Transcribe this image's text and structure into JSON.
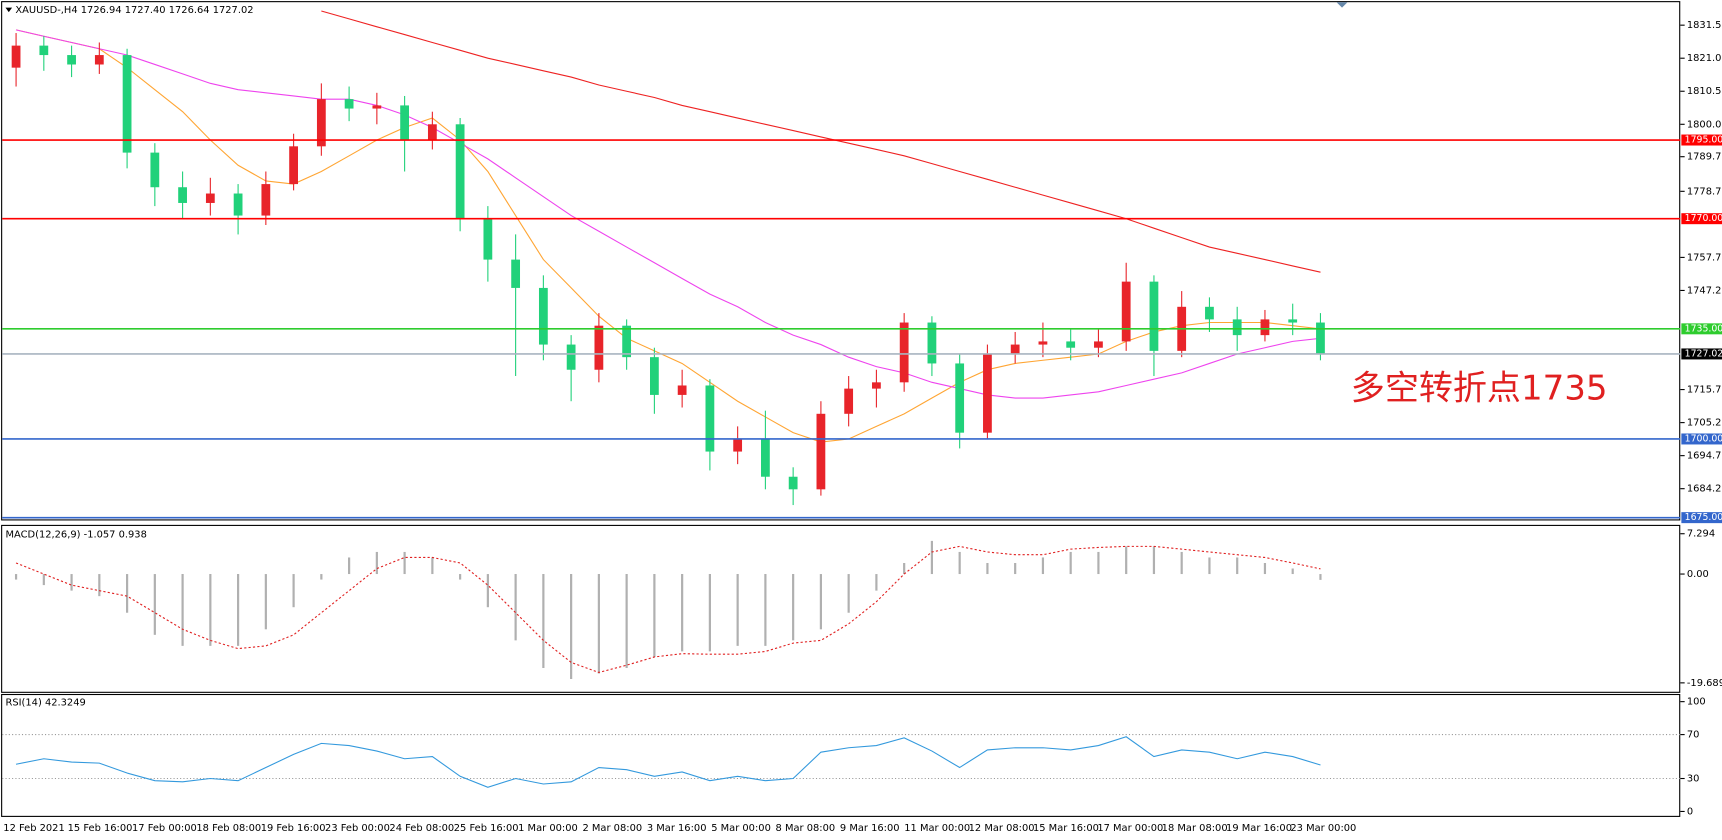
{
  "chart_data": [
    {
      "type": "candlestick",
      "title": "XAUUSD-,H4  1726.94 1727.40 1726.64 1727.02",
      "up_color": "#e8242a",
      "down_color": "#21d17a",
      "open": [
        1818,
        1825,
        1822,
        1819,
        1822,
        1791,
        1780,
        1775,
        1778,
        1771,
        1781,
        1793,
        1808,
        1805,
        1806,
        1795,
        1800,
        1770,
        1757,
        1748,
        1730,
        1722,
        1736,
        1726,
        1714,
        1717,
        1696,
        1700,
        1688,
        1684,
        1708,
        1716,
        1718,
        1737,
        1724,
        1702,
        1727,
        1730,
        1731,
        1729,
        1731,
        1750,
        1728,
        1742,
        1738,
        1733,
        1738,
        1737
      ],
      "high": [
        1829,
        1828,
        1825,
        1826,
        1824,
        1794,
        1785,
        1783,
        1781,
        1785,
        1797,
        1813,
        1812,
        1810,
        1809,
        1804,
        1802,
        1774,
        1765,
        1752,
        1733,
        1740,
        1738,
        1729,
        1722,
        1719,
        1704,
        1709,
        1691,
        1712,
        1720,
        1722,
        1740,
        1739,
        1727,
        1730,
        1734,
        1737,
        1735,
        1735,
        1756,
        1752,
        1747,
        1745,
        1742,
        1741,
        1743,
        1740
      ],
      "low": [
        1812,
        1817,
        1815,
        1816,
        1786,
        1774,
        1770,
        1771,
        1765,
        1768,
        1779,
        1790,
        1801,
        1800,
        1785,
        1792,
        1766,
        1750,
        1720,
        1725,
        1712,
        1718,
        1722,
        1708,
        1710,
        1690,
        1692,
        1684,
        1679,
        1682,
        1704,
        1710,
        1715,
        1720,
        1697,
        1700,
        1724,
        1726,
        1725,
        1726,
        1728,
        1720,
        1726,
        1734,
        1728,
        1731,
        1733,
        1725
      ],
      "close": [
        1825,
        1822,
        1819,
        1822,
        1791,
        1780,
        1775,
        1778,
        1771,
        1781,
        1793,
        1808,
        1805,
        1806,
        1795,
        1800,
        1770,
        1757,
        1748,
        1730,
        1722,
        1736,
        1726,
        1714,
        1717,
        1696,
        1700,
        1688,
        1684,
        1708,
        1716,
        1718,
        1737,
        1724,
        1702,
        1727,
        1730,
        1731,
        1729,
        1731,
        1750,
        1728,
        1742,
        1738,
        1733,
        1738,
        1737,
        1727.02
      ],
      "series": [
        {
          "color": "#ffa533",
          "values": [
            1830,
            1828,
            1826,
            1824,
            1818,
            1811,
            1804,
            1795,
            1787,
            1782,
            1781,
            1785,
            1790,
            1795,
            1799,
            1802,
            1795,
            1785,
            1771,
            1757,
            1748,
            1739,
            1732,
            1728,
            1724,
            1718,
            1712,
            1707,
            1702,
            1699,
            1700,
            1704,
            1708,
            1713,
            1718,
            1722,
            1724,
            1725,
            1726,
            1727,
            1731,
            1734,
            1736,
            1737,
            1737,
            1737,
            1736,
            1735
          ]
        },
        {
          "color": "#ee44ee",
          "values": [
            1830,
            1828,
            1826,
            1824,
            1822,
            1819,
            1816,
            1813,
            1811,
            1810,
            1809,
            1808,
            1808,
            1806,
            1803,
            1799,
            1794,
            1789,
            1783,
            1777,
            1771,
            1766,
            1761,
            1756,
            1751,
            1746,
            1742,
            1737,
            1733,
            1730,
            1726,
            1723,
            1721,
            1718,
            1716,
            1714,
            1713,
            1713,
            1714,
            1715,
            1717,
            1719,
            1721,
            1724,
            1727,
            1729,
            1731,
            1732
          ]
        },
        {
          "color": "#ee2222",
          "values": [
            null,
            null,
            null,
            null,
            null,
            null,
            null,
            null,
            null,
            null,
            null,
            1836,
            1833.5,
            1831,
            1828.5,
            1826,
            1823.5,
            1821,
            1819,
            1817,
            1815,
            1812.5,
            1810.5,
            1808.5,
            1806,
            1804,
            1802,
            1800,
            1798,
            1796,
            1794,
            1792,
            1790,
            1787.5,
            1785,
            1782.5,
            1780,
            1777.5,
            1775,
            1772.5,
            1770,
            1767,
            1764,
            1761,
            1759,
            1757,
            1755,
            1753
          ]
        }
      ],
      "levels": [
        {
          "value": 1795,
          "label": "1795.00",
          "color": "#ff0000"
        },
        {
          "value": 1770,
          "label": "1770.00",
          "color": "#ff0000"
        },
        {
          "value": 1735,
          "label": "1735.00",
          "color": "#2ecc2e"
        },
        {
          "value": 1727.02,
          "label": "1727.02",
          "color": "#a8b4c0"
        },
        {
          "value": 1700,
          "label": "1700.00",
          "color": "#3366cc"
        },
        {
          "value": 1675,
          "label": "1675.00",
          "color": "#3366cc"
        }
      ],
      "annotation": "多空转折点1735",
      "ylim": [
        1674.45,
        1838.8
      ],
      "yticks": [
        {
          "value": 1831.5,
          "label": "1831.50"
        },
        {
          "value": 1821,
          "label": "1821.00"
        },
        {
          "value": 1810.5,
          "label": "1810.50"
        },
        {
          "value": 1800,
          "label": "1800.00"
        },
        {
          "value": 1789.7,
          "label": "1789.70"
        },
        {
          "value": 1778.7,
          "label": "1778.70"
        },
        {
          "value": 1757.7,
          "label": "1757.70"
        },
        {
          "value": 1747.2,
          "label": "1747.20"
        },
        {
          "value": 1715.7,
          "label": "1715.70"
        },
        {
          "value": 1705.2,
          "label": "1705.20"
        },
        {
          "value": 1694.7,
          "label": "1694.70"
        },
        {
          "value": 1684.2,
          "label": "1684.20"
        }
      ],
      "x_tick_labels": [
        "12 Feb 2021",
        "15 Feb 16:00",
        "17 Feb 00:00",
        "18 Feb 08:00",
        "19 Feb 16:00",
        "23 Feb 00:00",
        "24 Feb 08:00",
        "25 Feb 16:00",
        "1 Mar 00:00",
        "2 Mar 08:00",
        "3 Mar 16:00",
        "5 Mar 00:00",
        "8 Mar 08:00",
        "9 Mar 16:00",
        "11 Mar 00:00",
        "12 Mar 08:00",
        "15 Mar 16:00",
        "17 Mar 00:00",
        "18 Mar 08:00",
        "19 Mar 16:00",
        "23 Mar 00:00"
      ]
    },
    {
      "type": "macd",
      "title": "MACD(12,26,9) -1.057 0.938",
      "series": [
        {
          "color": "#b0b0b0",
          "values": [
            -1,
            -2,
            -3,
            -4,
            -7,
            -11,
            -13,
            -13,
            -13,
            -10,
            -6,
            -1,
            3,
            4,
            4,
            3,
            -1,
            -6,
            -12,
            -17,
            -19,
            -18,
            -17,
            -15,
            -14,
            -14,
            -13,
            -13,
            -12,
            -10,
            -7,
            -3,
            2,
            6,
            4,
            2,
            2,
            3,
            4,
            4,
            5,
            5,
            4,
            3,
            3,
            2,
            1,
            -1.057
          ]
        },
        {
          "color": "#e02020",
          "values": [
            2,
            0,
            -2,
            -3,
            -4,
            -7,
            -10,
            -12,
            -13.5,
            -13,
            -11,
            -7,
            -3,
            1,
            3,
            3,
            2,
            -2,
            -7,
            -12,
            -16,
            -17.8,
            -16.5,
            -15,
            -14.4,
            -14.5,
            -14.5,
            -14,
            -12.5,
            -12,
            -9,
            -5,
            0,
            4,
            5,
            4,
            3.5,
            3.5,
            4.5,
            4.8,
            5,
            5,
            4.5,
            4,
            3.5,
            3,
            2,
            0.938
          ]
        }
      ],
      "ylim": [
        -21.3,
        8.7
      ],
      "yticks": [
        7.294,
        {
          "value": 0,
          "label": "0.00"
        },
        -19.689
      ]
    },
    {
      "type": "rsi",
      "title": "RSI(14) 42.3249",
      "color": "#3399dd",
      "values": [
        43,
        48,
        45,
        44,
        35,
        28,
        27,
        30,
        28,
        40,
        52,
        62,
        60,
        55,
        48,
        50,
        32,
        22,
        30,
        25,
        27,
        40,
        38,
        32,
        36,
        28,
        32,
        28,
        30,
        54,
        58,
        60,
        67,
        55,
        40,
        56,
        58,
        58,
        56,
        60,
        68,
        50,
        56,
        54,
        48,
        54,
        50,
        42.3249
      ],
      "levels": [
        70,
        30
      ],
      "ylim": [
        -4,
        106
      ],
      "yticks": [
        100,
        70,
        30,
        0
      ]
    }
  ]
}
